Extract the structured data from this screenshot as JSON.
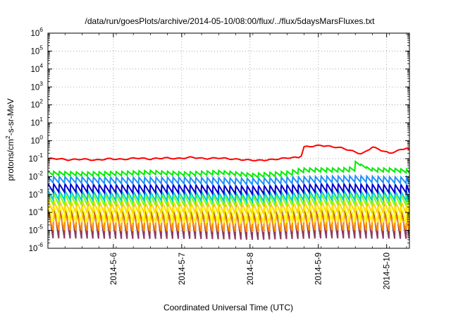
{
  "chart_data": {
    "type": "line",
    "title": "/data/run/goesPlots/archive/2014-05-10/08:00/flux/../flux/5daysMarsFluxes.txt",
    "xlabel": "Coordinated Universal Time (UTC)",
    "ylabel": "protons/cm2-s-sr-MeV",
    "ylabel_parts": {
      "before": "protons/cm",
      "sup": "2",
      "after": "-s-sr-MeV"
    },
    "yscale": "log",
    "ylim_exponents": [
      -6,
      6
    ],
    "y_tick_exponents": [
      -6,
      -5,
      -4,
      -3,
      -2,
      -1,
      0,
      1,
      2,
      3,
      4,
      5,
      6
    ],
    "y_tick_base": "10",
    "x_start": "2014-05-05T01:00",
    "x_end": "2014-05-10T08:00",
    "x_ticks": [
      "2014-5-6",
      "2014-5-7",
      "2014-5-8",
      "2014-5-9",
      "2014-5-10"
    ],
    "grid": true,
    "series": [
      {
        "color": "#ff0000",
        "sawtooth": false,
        "points": [
          [
            0,
            0.1
          ],
          [
            0.15,
            0.1
          ],
          [
            0.3,
            0.085
          ],
          [
            0.5,
            0.095
          ],
          [
            0.7,
            0.082
          ],
          [
            0.9,
            0.1
          ],
          [
            1.1,
            0.09
          ],
          [
            1.3,
            0.11
          ],
          [
            1.5,
            0.095
          ],
          [
            1.7,
            0.11
          ],
          [
            1.9,
            0.1
          ],
          [
            2.1,
            0.12
          ],
          [
            2.3,
            0.1
          ],
          [
            2.5,
            0.11
          ],
          [
            2.7,
            0.095
          ],
          [
            2.9,
            0.085
          ],
          [
            3.1,
            0.08
          ],
          [
            3.3,
            0.09
          ],
          [
            3.5,
            0.11
          ],
          [
            3.7,
            0.12
          ],
          [
            3.75,
            0.45
          ],
          [
            4.0,
            0.55
          ],
          [
            4.3,
            0.4
          ],
          [
            4.6,
            0.18
          ],
          [
            4.75,
            0.45
          ],
          [
            5.0,
            0.2
          ],
          [
            5.15,
            0.3
          ],
          [
            5.25,
            0.4
          ],
          [
            5.3,
            0.3
          ]
        ]
      },
      {
        "color": "#00ee00",
        "sawtooth": true,
        "lo_ratio": 0.6,
        "points": [
          [
            0,
            0.02
          ],
          [
            0.5,
            0.018
          ],
          [
            1.0,
            0.019
          ],
          [
            1.5,
            0.022
          ],
          [
            2.0,
            0.018
          ],
          [
            2.5,
            0.022
          ],
          [
            3.0,
            0.015
          ],
          [
            3.5,
            0.02
          ],
          [
            3.7,
            0.03
          ],
          [
            4.0,
            0.03
          ],
          [
            4.3,
            0.03
          ],
          [
            4.45,
            0.035
          ],
          [
            4.5,
            0.07
          ],
          [
            4.7,
            0.03
          ],
          [
            5.0,
            0.03
          ],
          [
            5.3,
            0.025
          ]
        ]
      },
      {
        "color": "#1e90ff",
        "sawtooth": true,
        "lo_ratio": 0.45,
        "points": [
          [
            0,
            0.01
          ],
          [
            1.0,
            0.009
          ],
          [
            2.0,
            0.009
          ],
          [
            3.0,
            0.008
          ],
          [
            3.8,
            0.01
          ],
          [
            4.5,
            0.011
          ],
          [
            5.3,
            0.009
          ]
        ]
      },
      {
        "color": "#0000cd",
        "sawtooth": true,
        "lo_ratio": 0.35,
        "points": [
          [
            0,
            0.004
          ],
          [
            1.0,
            0.0035
          ],
          [
            2.0,
            0.0035
          ],
          [
            3.0,
            0.003
          ],
          [
            4.0,
            0.004
          ],
          [
            5.3,
            0.0035
          ]
        ]
      },
      {
        "color": "#00ced1",
        "sawtooth": true,
        "lo_ratio": 0.3,
        "points": [
          [
            0,
            0.0017
          ],
          [
            1.0,
            0.0015
          ],
          [
            2.0,
            0.0015
          ],
          [
            3.0,
            0.0013
          ],
          [
            4.0,
            0.0017
          ],
          [
            5.3,
            0.0015
          ]
        ]
      },
      {
        "color": "#7fff00",
        "sawtooth": true,
        "lo_ratio": 0.25,
        "points": [
          [
            0,
            0.0011
          ],
          [
            1.0,
            0.001
          ],
          [
            2.0,
            0.001
          ],
          [
            3.0,
            0.0009
          ],
          [
            4.0,
            0.0011
          ],
          [
            5.3,
            0.001
          ]
        ]
      },
      {
        "color": "#ffd700",
        "sawtooth": true,
        "lo_ratio": 0.2,
        "points": [
          [
            0,
            0.0005
          ],
          [
            1.0,
            0.00045
          ],
          [
            2.0,
            0.00045
          ],
          [
            3.0,
            0.0004
          ],
          [
            4.0,
            0.0005
          ],
          [
            5.3,
            0.00045
          ]
        ]
      },
      {
        "color": "#ffff00",
        "sawtooth": true,
        "lo_ratio": 0.12,
        "points": [
          [
            0,
            0.00025
          ],
          [
            1.0,
            0.00022
          ],
          [
            2.0,
            0.00022
          ],
          [
            3.0,
            0.0002
          ],
          [
            4.0,
            0.00025
          ],
          [
            5.3,
            0.00022
          ]
        ]
      },
      {
        "color": "#ff8c00",
        "sawtooth": true,
        "lo_ratio": 0.1,
        "points": [
          [
            0,
            0.0001
          ],
          [
            1.0,
            9e-05
          ],
          [
            2.0,
            9e-05
          ],
          [
            3.0,
            8e-05
          ],
          [
            4.0,
            0.0001
          ],
          [
            5.3,
            9e-05
          ]
        ]
      },
      {
        "color": "#8b3a62",
        "sawtooth": true,
        "lo_ratio": 0.012,
        "points": [
          [
            0,
            0.0003
          ],
          [
            1.0,
            0.00028
          ],
          [
            2.0,
            0.00028
          ],
          [
            3.0,
            0.00025
          ],
          [
            4.0,
            0.0003
          ],
          [
            5.3,
            0.00028
          ]
        ]
      }
    ]
  }
}
